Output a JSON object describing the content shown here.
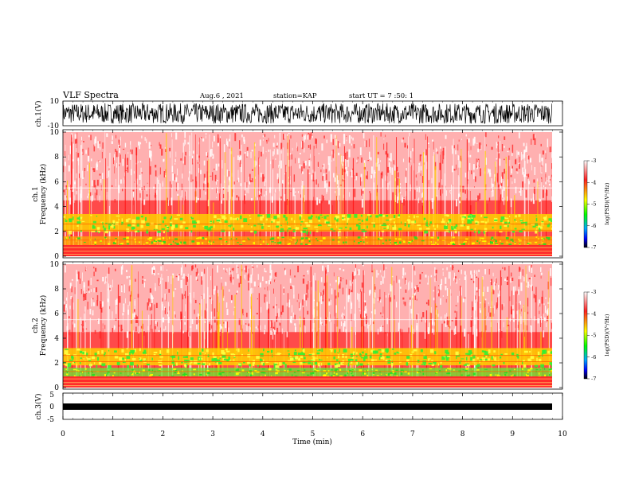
{
  "header": {
    "title": "VLF Spectra",
    "date": "Aug.6 , 2021",
    "station": "station=KAP",
    "start": "start UT = 7 :50: 1"
  },
  "colors": {
    "background": "#ffffff",
    "colorbar": [
      "#ffffff",
      "#ff2020",
      "#ffff00",
      "#00ff00",
      "#00aaff",
      "#0000ff",
      "#000000"
    ]
  },
  "chart_data": [
    {
      "type": "line",
      "id": "ch1-waveform",
      "ylabel": "ch.1(V)",
      "ylim": [
        -10,
        10
      ],
      "yticks": [
        "10",
        "-10"
      ],
      "description_series": "noise waveform spanning roughly -8 to 8 V"
    },
    {
      "type": "heatmap",
      "id": "ch1-spectrogram",
      "ylabel": "ch.1\nFrequency (kHz)",
      "ylabel_lines": [
        "ch.1",
        "Frequency (kHz)"
      ],
      "ylim": [
        0,
        10
      ],
      "yticks": [
        "0",
        "2",
        "4",
        "6",
        "8",
        "10"
      ],
      "colorbar": {
        "label": "log(PSD)(V²/Hz)",
        "ticks": [
          "-3",
          "-4",
          "-5",
          "-6",
          "-7"
        ],
        "range": [
          -7,
          -3
        ]
      }
    },
    {
      "type": "heatmap",
      "id": "ch2-spectrogram",
      "ylabel": "ch.2\nFrequency (kHz)",
      "ylabel_lines": [
        "ch.2",
        "Frequency (kHz)"
      ],
      "ylim": [
        0,
        10
      ],
      "yticks": [
        "0",
        "2",
        "4",
        "6",
        "8",
        "10"
      ],
      "colorbar": {
        "label": "log(PSD)(V²/Hz)",
        "ticks": [
          "-3",
          "-4",
          "-5",
          "-6",
          "-7"
        ],
        "range": [
          -7,
          -3
        ]
      }
    },
    {
      "type": "line",
      "id": "ch3-waveform",
      "ylabel": "ch.3(V)",
      "ylim": [
        -5,
        5
      ],
      "yticks": [
        "5",
        "0",
        "-5"
      ],
      "xlabel": "Time (min)",
      "xlim": [
        0,
        10
      ],
      "xticks": [
        "0",
        "1",
        "2",
        "3",
        "4",
        "5",
        "6",
        "7",
        "8",
        "9",
        "10"
      ]
    }
  ]
}
